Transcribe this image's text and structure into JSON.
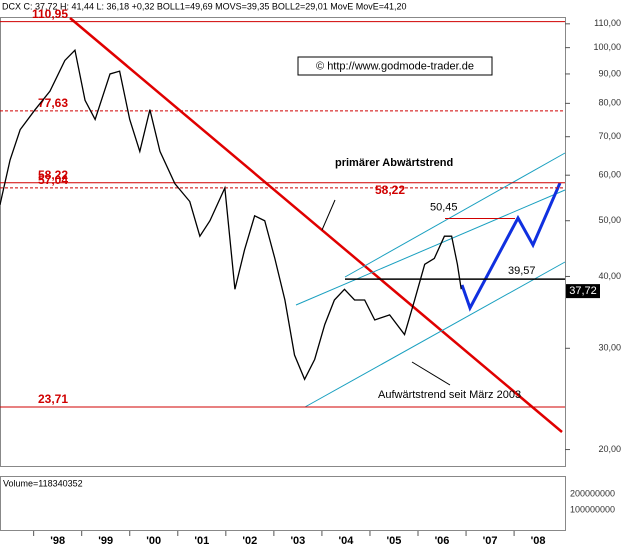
{
  "chart_data": {
    "type": "line",
    "header": "DCX C: 37,72 H: 41,44 L: 36,18 +0,32 BOLL1=49,69 MOVS=39,35 BOLL2=29,01 MovE MovE=41,20",
    "copyright": "© http://www.godmode-trader.de",
    "log_y": true,
    "xlim": [
      1996.8,
      2008.56
    ],
    "ylim": [
      18.8,
      112.6
    ],
    "xticks": [
      {
        "value": 1998,
        "label": "'98"
      },
      {
        "value": 1999,
        "label": "'99"
      },
      {
        "value": 2000,
        "label": "'00"
      },
      {
        "value": 2001,
        "label": "'01"
      },
      {
        "value": 2002,
        "label": "'02"
      },
      {
        "value": 2003,
        "label": "'03"
      },
      {
        "value": 2004,
        "label": "'04"
      },
      {
        "value": 2005,
        "label": "'05"
      },
      {
        "value": 2006,
        "label": "'06"
      },
      {
        "value": 2007,
        "label": "'07"
      },
      {
        "value": 2008,
        "label": "'08"
      }
    ],
    "yticks": [
      {
        "value": 20,
        "label": "20,00"
      },
      {
        "value": 30,
        "label": "30,00"
      },
      {
        "value": 40,
        "label": "40,00"
      },
      {
        "value": 50,
        "label": "50,00"
      },
      {
        "value": 60,
        "label": "60,00"
      },
      {
        "value": 70,
        "label": "70,00"
      },
      {
        "value": 80,
        "label": "80,00"
      },
      {
        "value": 90,
        "label": "90,00"
      },
      {
        "value": 100,
        "label": "100,00"
      },
      {
        "value": 110,
        "label": "110,00"
      }
    ],
    "x": [
      1996.8,
      1997.01,
      1997.22,
      1997.53,
      1997.84,
      1998.15,
      1998.36,
      1998.57,
      1998.78,
      1999.09,
      1999.29,
      1999.5,
      1999.71,
      1999.92,
      2000.13,
      2000.44,
      2000.75,
      2000.96,
      2001.17,
      2001.48,
      2001.69,
      2001.89,
      2002.1,
      2002.31,
      2002.52,
      2002.73,
      2002.93,
      2003.14,
      2003.35,
      2003.56,
      2003.76,
      2003.97,
      2004.18,
      2004.39,
      2004.6,
      2004.91,
      2005.22,
      2005.43,
      2005.64,
      2005.84,
      2006.05,
      2006.2,
      2006.32,
      2006.4
    ],
    "series": [
      {
        "name": "DCX",
        "color": "#000000",
        "values": [
          53.3,
          63.8,
          72,
          78,
          84,
          95,
          99,
          81,
          75,
          90,
          91,
          75,
          66,
          78,
          66,
          58,
          54,
          47,
          50,
          57,
          38,
          44.5,
          51,
          50,
          43,
          36.4,
          29.2,
          26.5,
          28.7,
          33,
          36.4,
          38,
          36.4,
          36.4,
          33.6,
          34.3,
          31.7,
          36.4,
          42,
          43,
          47,
          47,
          42,
          38
        ]
      }
    ],
    "levels": [
      {
        "value": 110.95,
        "label": "110,95",
        "style": "solid"
      },
      {
        "value": 77.63,
        "label": "77,63",
        "style": "dashed"
      },
      {
        "value": 58.22,
        "label": "58,22",
        "style": "solid"
      },
      {
        "value": 57.04,
        "label": "57,04",
        "style": "dashed"
      },
      {
        "value": 23.71,
        "label": "23,71",
        "style": "solid"
      }
    ],
    "resistance": {
      "value": 50.45,
      "label": "50,45"
    },
    "support": {
      "value": 39.57,
      "label": "39,57"
    },
    "last_price": {
      "value": 37.72,
      "label": "37,72"
    },
    "annotations": [
      "primärer Abwärtstrend",
      "Aufwärtstrend seit März 2003"
    ],
    "volume_label": "Volume=118340352",
    "volume_ticks": [
      "200000000",
      "100000000"
    ]
  }
}
